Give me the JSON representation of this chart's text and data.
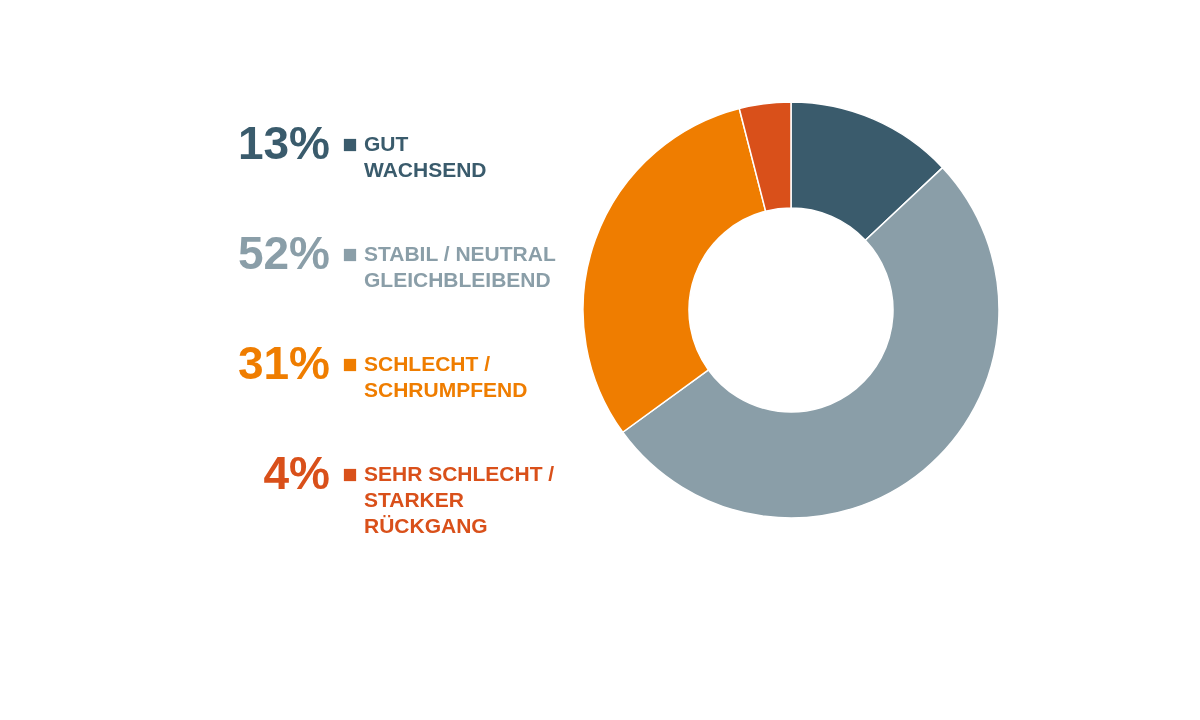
{
  "chart_data": {
    "type": "donut",
    "categories": [
      "GUT\nWACHSEND",
      "STABIL / NEUTRAL\nGLEICHBLEIBEND",
      "SCHLECHT /\nSCHRUMPFEND",
      "SEHR SCHLECHT /\nSTARKER\nRÜCKGANG"
    ],
    "values": [
      13,
      52,
      31,
      4
    ],
    "value_labels": [
      "13%",
      "52%",
      "31%",
      "4%"
    ],
    "colors": [
      "#3a5b6c",
      "#8a9ea8",
      "#ef7d00",
      "#d9501a"
    ],
    "legend": "left"
  }
}
